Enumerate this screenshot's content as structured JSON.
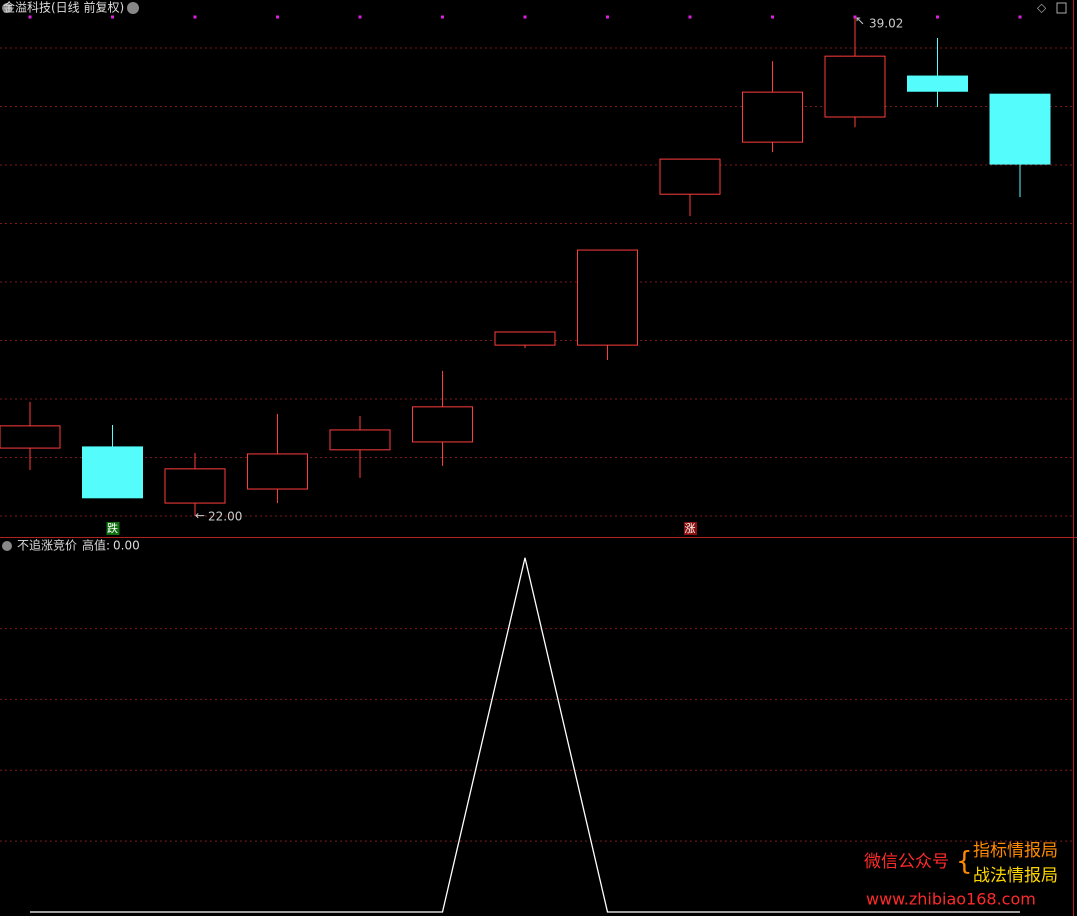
{
  "chart_data": [
    {
      "type": "candlestick",
      "title": "金溢科技(日线 前复权)",
      "candles": [
        {
          "open": 24.32,
          "high": 25.9,
          "low": 23.57,
          "close": 25.08
        },
        {
          "open": 24.36,
          "high": 25.11,
          "low": 22.62,
          "close": 22.62
        },
        {
          "open": 22.44,
          "high": 24.15,
          "low": 22.0,
          "close": 23.61
        },
        {
          "open": 22.92,
          "high": 25.49,
          "low": 22.44,
          "close": 24.12
        },
        {
          "open": 24.26,
          "high": 25.42,
          "low": 23.3,
          "close": 24.94
        },
        {
          "open": 24.53,
          "high": 26.96,
          "low": 23.71,
          "close": 25.73
        },
        {
          "open": 27.84,
          "high": 28.29,
          "low": 27.74,
          "close": 28.29
        },
        {
          "open": 27.84,
          "high": 31.09,
          "low": 27.33,
          "close": 31.09
        },
        {
          "open": 33.0,
          "high": 34.2,
          "low": 32.25,
          "close": 34.2
        },
        {
          "open": 34.78,
          "high": 37.55,
          "low": 34.44,
          "close": 36.49
        },
        {
          "open": 35.64,
          "high": 39.02,
          "low": 35.29,
          "close": 37.72
        },
        {
          "open": 37.04,
          "high": 38.34,
          "low": 35.98,
          "close": 36.52
        },
        {
          "open": 36.42,
          "high": 36.42,
          "low": 32.9,
          "close": 34.03
        }
      ],
      "up_color": "#ff3c3c",
      "down_color": "#54fcfc",
      "high_label": "39.02",
      "low_label": "22.00",
      "signals": [
        null,
        "跌",
        null,
        null,
        null,
        null,
        null,
        null,
        "涨",
        null,
        null,
        null,
        null
      ],
      "ylim": [
        21.28,
        39.64
      ],
      "grid_lines": [
        22,
        24,
        26,
        28,
        30,
        32,
        34,
        36,
        38
      ]
    },
    {
      "type": "line",
      "title": "不追涨竞价",
      "series": [
        {
          "name": "高值",
          "color": "#ffffff",
          "value_label": "0.00",
          "values": [
            0,
            0,
            0,
            0,
            0,
            0,
            1,
            0,
            0,
            0,
            0,
            0,
            0
          ]
        }
      ],
      "ylim": [
        0,
        1.05
      ],
      "grid_lines": [
        0.2,
        0.4,
        0.6,
        0.8
      ]
    }
  ],
  "watermark": {
    "label": "微信公众号",
    "line1": "指标情报局",
    "line2": "战法情报局",
    "url": "www.zhibiao168.com"
  }
}
